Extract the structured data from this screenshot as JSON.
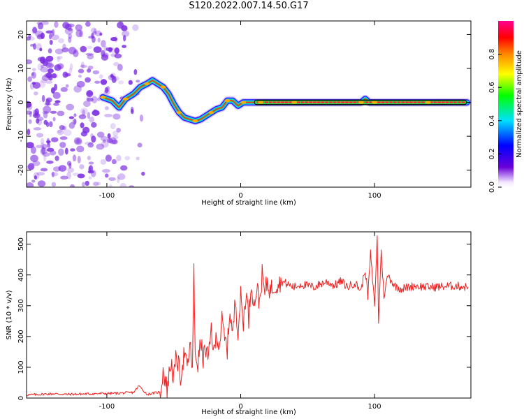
{
  "title": "S120.2022.007.14.50.G17",
  "colors": {
    "snr_line": "#ee2222",
    "track_dark": "#000000",
    "track_mid": "#22dd55",
    "track_hot": "#ff2a2a",
    "noise": "#7a2be0"
  },
  "chart_data": [
    {
      "type": "heatmap",
      "xlabel": "Height of straight line (km)",
      "ylabel": "Frequency (Hz)",
      "xlim": [
        -160,
        172
      ],
      "ylim": [
        -25,
        24
      ],
      "xticks": [
        -100,
        0,
        100
      ],
      "xtick_labels": [
        "-100",
        "0",
        "100"
      ],
      "yticks": [
        -20,
        -10,
        0,
        10,
        20
      ],
      "ytick_labels": [
        "-20",
        "-10",
        "0",
        "10",
        "20"
      ],
      "colorbar": {
        "label": "Normalized spectral amplitude",
        "range": [
          0,
          1
        ],
        "ticks": [
          0.0,
          0.2,
          0.4,
          0.6,
          0.8
        ],
        "tick_labels": [
          "0.0",
          "0.2",
          "0.4",
          "0.6",
          "0.8"
        ],
        "colormap": [
          "#ffffff",
          "#6a00d8",
          "#0000ff",
          "#00e0ff",
          "#00ff00",
          "#ffff00",
          "#ff8800",
          "#ff0000",
          "#ff00a0"
        ]
      },
      "noise_region_x": [
        -160,
        -72
      ],
      "ridge": {
        "x": [
          -103,
          -96,
          -91,
          -86,
          -80,
          -75,
          -70,
          -66,
          -62,
          -58,
          -54,
          -50,
          -46,
          -42,
          -38,
          -34,
          -30,
          -26,
          -22,
          -18,
          -14,
          -10,
          -6,
          -2,
          2,
          6,
          10,
          15,
          20,
          30,
          40,
          60,
          80,
          90,
          93,
          96,
          100,
          105,
          120,
          140,
          160,
          169
        ],
        "y": [
          1.5,
          0.5,
          -1.5,
          1.0,
          2.5,
          4.5,
          5.5,
          6.5,
          5.5,
          4.5,
          2.5,
          -0.5,
          -3.0,
          -4.5,
          -5.0,
          -5.5,
          -5.0,
          -4.0,
          -3.0,
          -2.0,
          -1.5,
          0.5,
          0.5,
          -1.0,
          0.0,
          0.0,
          0.0,
          0.0,
          0.0,
          0.0,
          0.0,
          0.0,
          0.0,
          0.0,
          1.0,
          0.0,
          0.0,
          0.0,
          0.0,
          0.0,
          0.0,
          0.0
        ]
      }
    },
    {
      "type": "line",
      "xlabel": "Height of straight line (km)",
      "ylabel": "SNR (10 * v/v)",
      "xlim": [
        -160,
        172
      ],
      "ylim": [
        0,
        540
      ],
      "xticks": [
        -100,
        0,
        100
      ],
      "xtick_labels": [
        "-100",
        "0",
        "100"
      ],
      "yticks": [
        0,
        100,
        200,
        300,
        400,
        500
      ],
      "ytick_labels": [
        "0",
        "100",
        "200",
        "300",
        "400",
        "500"
      ],
      "series": [
        {
          "x": [
            -160,
            -150,
            -140,
            -130,
            -120,
            -110,
            -100,
            -90,
            -80,
            -76,
            -70,
            -60,
            -58,
            -55,
            -52,
            -50,
            -48,
            -45,
            -42,
            -40,
            -38,
            -36,
            -35,
            -34,
            -32,
            -30,
            -28,
            -26,
            -24,
            -22,
            -20,
            -18,
            -16,
            -14,
            -12,
            -10,
            -8,
            -6,
            -4,
            -2,
            0,
            2,
            4,
            6,
            8,
            10,
            12,
            14,
            16,
            18,
            20,
            22,
            25,
            28,
            30,
            35,
            40,
            45,
            50,
            55,
            60,
            65,
            70,
            75,
            80,
            85,
            90,
            93,
            95,
            97,
            100,
            102,
            103,
            105,
            107,
            110,
            115,
            120,
            130,
            140,
            150,
            160,
            170
          ],
          "y": [
            10,
            12,
            14,
            12,
            13,
            14,
            15,
            16,
            18,
            40,
            12,
            20,
            90,
            30,
            120,
            60,
            140,
            70,
            150,
            90,
            170,
            100,
            410,
            150,
            110,
            180,
            130,
            160,
            120,
            230,
            140,
            210,
            170,
            250,
            190,
            160,
            290,
            200,
            320,
            220,
            330,
            240,
            350,
            260,
            380,
            300,
            360,
            310,
            400,
            340,
            380,
            350,
            365,
            375,
            380,
            370,
            360,
            370,
            365,
            360,
            372,
            378,
            365,
            380,
            360,
            375,
            350,
            420,
            330,
            470,
            300,
            520,
            250,
            480,
            330,
            400,
            365,
            355,
            365,
            360,
            362,
            365,
            360
          ]
        }
      ]
    }
  ]
}
